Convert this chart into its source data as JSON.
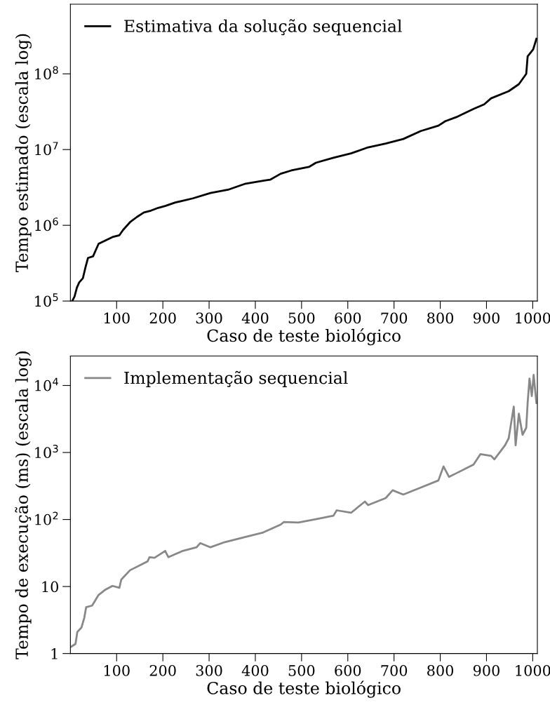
{
  "chart_data": [
    {
      "type": "line",
      "xlabel": "Caso de teste biológico",
      "ylabel": "Tempo estimado (escala log)",
      "log": "y",
      "legend": "top left",
      "grid": false,
      "xlim": [
        0,
        1010
      ],
      "xticks": [
        100,
        200,
        300,
        400,
        500,
        600,
        700,
        800,
        900,
        1000
      ],
      "ylim": [
        100000,
        830000000
      ],
      "yticks": [
        {
          "value": 100000,
          "label": "10$^{5}$"
        },
        {
          "value": 1000000,
          "label": "10$^{6}$"
        },
        {
          "value": 10000000,
          "label": "10$^{7}$"
        },
        {
          "value": 100000000,
          "label": "10$^{8}$"
        }
      ],
      "series": [
        {
          "name": "Estimativa da solução sequencial",
          "color": "#000000",
          "x": [
            4,
            9,
            14,
            19,
            27,
            33,
            38,
            49,
            61,
            76,
            91,
            106,
            114,
            129,
            144,
            159,
            174,
            190,
            205,
            227,
            265,
            303,
            341,
            379,
            417,
            432,
            455,
            478,
            516,
            531,
            569,
            607,
            644,
            682,
            720,
            758,
            796,
            811,
            834,
            872,
            895,
            910,
            948,
            970,
            986,
            989,
            1001,
            1008
          ],
          "values": [
            100000,
            115000,
            150000,
            176000,
            200000,
            285000,
            370000,
            390000,
            570000,
            630000,
            700000,
            740000,
            870000,
            1100000,
            1290000,
            1480000,
            1560000,
            1700000,
            1800000,
            2000000,
            2270000,
            2670000,
            2950000,
            3550000,
            3870000,
            4000000,
            4800000,
            5300000,
            5900000,
            6700000,
            7800000,
            8900000,
            10700000,
            12000000,
            13800000,
            17600000,
            20700000,
            23700000,
            26700000,
            34400000,
            39600000,
            47500000,
            59000000,
            73000000,
            100000000,
            170000000,
            210000000,
            290000000
          ]
        }
      ]
    },
    {
      "type": "line",
      "xlabel": "Caso de teste biológico",
      "ylabel": "Tempo de execução (ms) (escala log)",
      "log": "y",
      "legend": "top left",
      "grid": false,
      "xlim": [
        0,
        1010
      ],
      "xticks": [
        100,
        200,
        300,
        400,
        500,
        600,
        700,
        800,
        900,
        1000
      ],
      "ylim": [
        1,
        27500
      ],
      "yticks": [
        1,
        10,
        {
          "value": 100,
          "label": "10$^{2}$"
        },
        {
          "value": 1000,
          "label": "10$^{3}$"
        },
        {
          "value": 10000,
          "label": "10$^{4}$"
        }
      ],
      "series": [
        {
          "name": "Implementação sequencial",
          "color": "#888888",
          "x": [
            2,
            11,
            15,
            24,
            30,
            34,
            47,
            61,
            76,
            91,
            106,
            110,
            129,
            152,
            167,
            171,
            182,
            205,
            212,
            243,
            273,
            281,
            303,
            334,
            379,
            417,
            455,
            462,
            493,
            531,
            569,
            576,
            607,
            637,
            644,
            682,
            697,
            720,
            758,
            796,
            807,
            819,
            834,
            872,
            887,
            910,
            917,
            940,
            948,
            959,
            963,
            970,
            978,
            986,
            989,
            993,
            998,
            1002,
            1008
          ],
          "values": [
            1.27,
            1.39,
            2.1,
            2.45,
            3.4,
            4.9,
            5.2,
            7.5,
            9.0,
            10.2,
            9.6,
            12.7,
            17.5,
            21,
            23.7,
            27.4,
            26.8,
            34,
            27.4,
            34,
            38.5,
            44.5,
            38.5,
            46,
            55,
            64,
            84,
            92,
            90,
            101,
            114,
            137,
            126,
            185,
            164,
            209,
            273,
            236,
            300,
            383,
            620,
            432,
            487,
            659,
            946,
            891,
            790,
            1280,
            1630,
            4840,
            1280,
            3800,
            1840,
            2340,
            5470,
            12700,
            6960,
            14400,
            5470
          ]
        }
      ]
    }
  ]
}
